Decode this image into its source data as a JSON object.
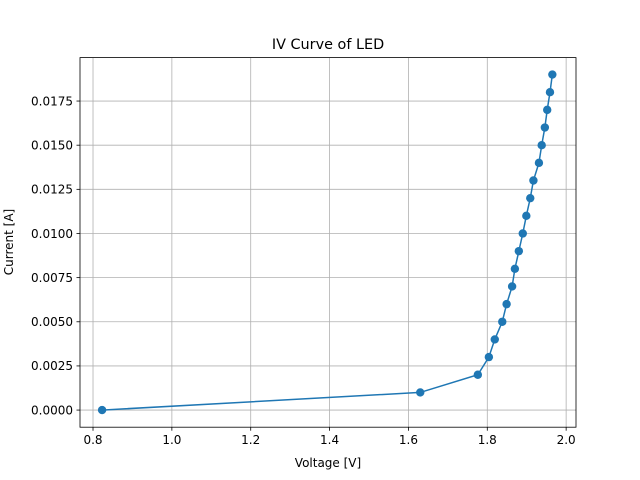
{
  "chart_data": {
    "type": "line",
    "title": "IV Curve of LED",
    "xlabel": "Voltage [V]",
    "ylabel": "Current [A]",
    "x": [
      0.823,
      1.63,
      1.776,
      1.804,
      1.819,
      1.838,
      1.849,
      1.863,
      1.87,
      1.88,
      1.89,
      1.899,
      1.909,
      1.917,
      1.931,
      1.938,
      1.946,
      1.952,
      1.959,
      1.965
    ],
    "series": [
      {
        "color": "#1f77b4",
        "values": [
          0,
          0.001,
          0.002,
          0.003,
          0.004,
          0.005,
          0.006,
          0.007,
          0.008,
          0.009,
          0.01,
          0.011,
          0.012,
          0.013,
          0.014,
          0.015,
          0.016,
          0.017,
          0.018,
          0.019
        ]
      }
    ],
    "xlim": [
      0.767,
      2.025
    ],
    "xticks": [
      {
        "value": 0.8,
        "label": "0.8"
      },
      {
        "value": 1.0,
        "label": "1.0"
      },
      {
        "value": 1.2,
        "label": "1.2"
      },
      {
        "value": 1.4,
        "label": "1.4"
      },
      {
        "value": 1.6,
        "label": "1.6"
      },
      {
        "value": 1.8,
        "label": "1.8"
      },
      {
        "value": 2.0,
        "label": "2.0"
      }
    ],
    "ylim": [
      -0.00097,
      0.01996
    ],
    "yticks": [
      {
        "value": 0,
        "label": "0.0000"
      },
      {
        "value": 0.0025,
        "label": "0.0025"
      },
      {
        "value": 0.005,
        "label": "0.0050"
      },
      {
        "value": 0.0075,
        "label": "0.0075"
      },
      {
        "value": 0.01,
        "label": "0.0100"
      },
      {
        "value": 0.0125,
        "label": "0.0125"
      },
      {
        "value": 0.015,
        "label": "0.0150"
      },
      {
        "value": 0.0175,
        "label": "0.0175"
      }
    ],
    "grid": true
  }
}
